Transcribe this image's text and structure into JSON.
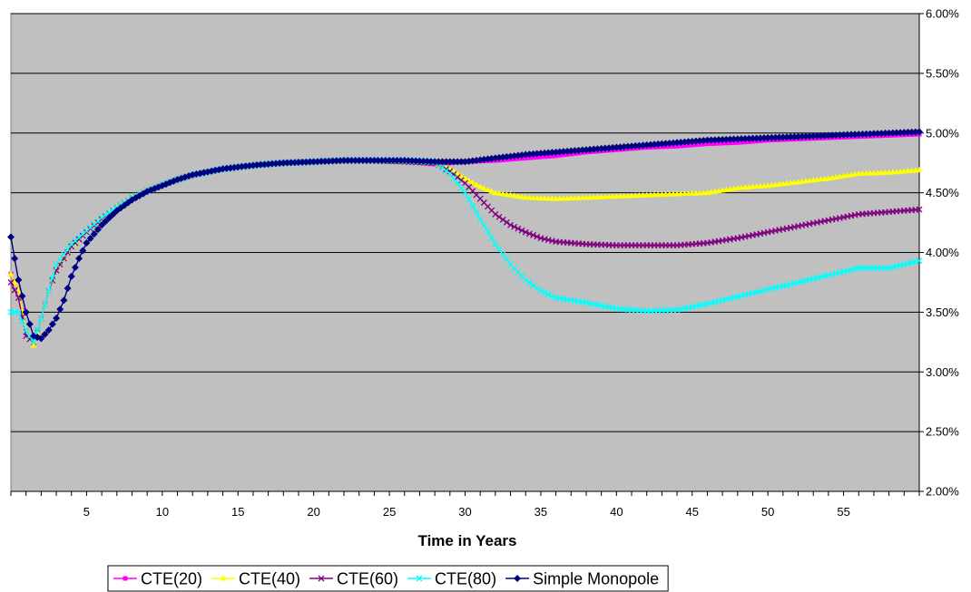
{
  "chart_data": {
    "type": "line",
    "title": "",
    "xlabel": "Time in Years",
    "ylabel": "",
    "xlim": [
      0,
      60
    ],
    "ylim": [
      0.02,
      0.06
    ],
    "x_ticks": [
      5,
      10,
      15,
      20,
      25,
      30,
      35,
      40,
      45,
      50,
      55
    ],
    "x_tick_labels": [
      "5",
      "10",
      "15",
      "20",
      "25",
      "30",
      "35",
      "40",
      "45",
      "50",
      "55"
    ],
    "y_ticks": [
      0.02,
      0.025,
      0.03,
      0.035,
      0.04,
      0.045,
      0.05,
      0.055,
      0.06
    ],
    "y_tick_labels": [
      "2.00%",
      "2.50%",
      "3.00%",
      "3.50%",
      "4.00%",
      "4.50%",
      "5.00%",
      "5.50%",
      "6.00%"
    ],
    "y_axis_side": "right",
    "grid": "horizontal",
    "plot_background": "#c0c0c0",
    "legend": "bottom",
    "series": [
      {
        "name": "CTE(20)",
        "color": "#ff00ff",
        "marker": "square",
        "points": [
          [
            0,
            0.0382
          ],
          [
            0.5,
            0.0368
          ],
          [
            1,
            0.0335
          ],
          [
            1.5,
            0.0322
          ],
          [
            2,
            0.0345
          ],
          [
            2.5,
            0.0368
          ],
          [
            3,
            0.0385
          ],
          [
            4,
            0.0405
          ],
          [
            5,
            0.0417
          ],
          [
            6,
            0.0428
          ],
          [
            7,
            0.0438
          ],
          [
            8,
            0.0446
          ],
          [
            9,
            0.0452
          ],
          [
            10,
            0.0457
          ],
          [
            12,
            0.0465
          ],
          [
            14,
            0.047
          ],
          [
            16,
            0.0473
          ],
          [
            18,
            0.0475
          ],
          [
            20,
            0.0476
          ],
          [
            22,
            0.0477
          ],
          [
            24,
            0.0477
          ],
          [
            26,
            0.0476
          ],
          [
            28,
            0.0474
          ],
          [
            30,
            0.0476
          ],
          [
            32,
            0.0477
          ],
          [
            34,
            0.0479
          ],
          [
            36,
            0.0481
          ],
          [
            38,
            0.0484
          ],
          [
            40,
            0.0486
          ],
          [
            42,
            0.0488
          ],
          [
            44,
            0.0489
          ],
          [
            46,
            0.0491
          ],
          [
            48,
            0.0492
          ],
          [
            50,
            0.0494
          ],
          [
            52,
            0.0495
          ],
          [
            54,
            0.0496
          ],
          [
            56,
            0.0497
          ],
          [
            58,
            0.0498
          ],
          [
            60,
            0.0499
          ]
        ]
      },
      {
        "name": "CTE(40)",
        "color": "#ffff00",
        "marker": "triangle",
        "points": [
          [
            0,
            0.0382
          ],
          [
            0.5,
            0.0368
          ],
          [
            1,
            0.0335
          ],
          [
            1.5,
            0.0322
          ],
          [
            2,
            0.0345
          ],
          [
            2.5,
            0.0368
          ],
          [
            3,
            0.0385
          ],
          [
            4,
            0.0405
          ],
          [
            5,
            0.0417
          ],
          [
            6,
            0.0428
          ],
          [
            7,
            0.0438
          ],
          [
            8,
            0.0446
          ],
          [
            9,
            0.0452
          ],
          [
            10,
            0.0457
          ],
          [
            12,
            0.0465
          ],
          [
            14,
            0.047
          ],
          [
            16,
            0.0473
          ],
          [
            18,
            0.0475
          ],
          [
            20,
            0.0476
          ],
          [
            22,
            0.0477
          ],
          [
            24,
            0.0477
          ],
          [
            26,
            0.0476
          ],
          [
            28,
            0.0475
          ],
          [
            29,
            0.047
          ],
          [
            30,
            0.0462
          ],
          [
            31,
            0.0455
          ],
          [
            32,
            0.045
          ],
          [
            34,
            0.0446
          ],
          [
            36,
            0.0445
          ],
          [
            38,
            0.0446
          ],
          [
            40,
            0.0447
          ],
          [
            42,
            0.0448
          ],
          [
            44,
            0.0449
          ],
          [
            46,
            0.045
          ],
          [
            48,
            0.0454
          ],
          [
            50,
            0.0456
          ],
          [
            52,
            0.0459
          ],
          [
            54,
            0.0462
          ],
          [
            56,
            0.0466
          ],
          [
            58,
            0.0467
          ],
          [
            60,
            0.0469
          ]
        ]
      },
      {
        "name": "CTE(60)",
        "color": "#800080",
        "marker": "x",
        "points": [
          [
            0,
            0.0375
          ],
          [
            0.5,
            0.0362
          ],
          [
            1,
            0.033
          ],
          [
            1.5,
            0.0325
          ],
          [
            2,
            0.0345
          ],
          [
            2.5,
            0.0368
          ],
          [
            3,
            0.0385
          ],
          [
            4,
            0.0405
          ],
          [
            5,
            0.0417
          ],
          [
            6,
            0.0428
          ],
          [
            7,
            0.0438
          ],
          [
            8,
            0.0446
          ],
          [
            9,
            0.0452
          ],
          [
            10,
            0.0457
          ],
          [
            12,
            0.0465
          ],
          [
            14,
            0.047
          ],
          [
            16,
            0.0473
          ],
          [
            18,
            0.0475
          ],
          [
            20,
            0.0476
          ],
          [
            22,
            0.0477
          ],
          [
            24,
            0.0477
          ],
          [
            26,
            0.0476
          ],
          [
            28,
            0.0475
          ],
          [
            29,
            0.0468
          ],
          [
            30,
            0.0458
          ],
          [
            31,
            0.0445
          ],
          [
            32,
            0.0432
          ],
          [
            33,
            0.0423
          ],
          [
            34,
            0.0417
          ],
          [
            35,
            0.0412
          ],
          [
            36,
            0.0409
          ],
          [
            38,
            0.0407
          ],
          [
            40,
            0.0406
          ],
          [
            42,
            0.0406
          ],
          [
            44,
            0.0406
          ],
          [
            46,
            0.0408
          ],
          [
            48,
            0.0412
          ],
          [
            50,
            0.0417
          ],
          [
            52,
            0.0422
          ],
          [
            54,
            0.0427
          ],
          [
            56,
            0.0432
          ],
          [
            58,
            0.0434
          ],
          [
            60,
            0.0436
          ]
        ]
      },
      {
        "name": "CTE(80)",
        "color": "#00ffff",
        "marker": "x",
        "points": [
          [
            0,
            0.035
          ],
          [
            0.5,
            0.035
          ],
          [
            1,
            0.0335
          ],
          [
            1.5,
            0.0325
          ],
          [
            2,
            0.0345
          ],
          [
            2.5,
            0.0368
          ],
          [
            3,
            0.039
          ],
          [
            4,
            0.0407
          ],
          [
            5,
            0.0418
          ],
          [
            6,
            0.0429
          ],
          [
            7,
            0.0438
          ],
          [
            8,
            0.0446
          ],
          [
            9,
            0.0452
          ],
          [
            10,
            0.0457
          ],
          [
            12,
            0.0465
          ],
          [
            14,
            0.047
          ],
          [
            16,
            0.0473
          ],
          [
            18,
            0.0475
          ],
          [
            20,
            0.0476
          ],
          [
            22,
            0.0477
          ],
          [
            24,
            0.0477
          ],
          [
            26,
            0.0477
          ],
          [
            28,
            0.0476
          ],
          [
            29,
            0.0466
          ],
          [
            30,
            0.045
          ],
          [
            31,
            0.0428
          ],
          [
            32,
            0.0407
          ],
          [
            33,
            0.039
          ],
          [
            34,
            0.0377
          ],
          [
            35,
            0.0368
          ],
          [
            36,
            0.0362
          ],
          [
            37,
            0.036
          ],
          [
            38,
            0.0358
          ],
          [
            40,
            0.0353
          ],
          [
            42,
            0.0351
          ],
          [
            44,
            0.0352
          ],
          [
            46,
            0.0357
          ],
          [
            48,
            0.0363
          ],
          [
            50,
            0.0369
          ],
          [
            52,
            0.0375
          ],
          [
            54,
            0.0381
          ],
          [
            56,
            0.0387
          ],
          [
            58,
            0.0387
          ],
          [
            60,
            0.0393
          ]
        ]
      },
      {
        "name": "Simple Monopole",
        "color": "#000080",
        "marker": "diamond",
        "points": [
          [
            0,
            0.0413
          ],
          [
            0.5,
            0.0377
          ],
          [
            1,
            0.035
          ],
          [
            1.5,
            0.033
          ],
          [
            2,
            0.0328
          ],
          [
            2.5,
            0.0335
          ],
          [
            3,
            0.0345
          ],
          [
            3.5,
            0.036
          ],
          [
            4,
            0.038
          ],
          [
            4.5,
            0.0395
          ],
          [
            5,
            0.0408
          ],
          [
            6,
            0.0423
          ],
          [
            7,
            0.0435
          ],
          [
            8,
            0.0444
          ],
          [
            9,
            0.0451
          ],
          [
            10,
            0.0456
          ],
          [
            11,
            0.0461
          ],
          [
            12,
            0.0465
          ],
          [
            14,
            0.047
          ],
          [
            16,
            0.0473
          ],
          [
            18,
            0.0475
          ],
          [
            20,
            0.0476
          ],
          [
            22,
            0.0477
          ],
          [
            24,
            0.0477
          ],
          [
            26,
            0.0477
          ],
          [
            28,
            0.0476
          ],
          [
            29,
            0.0476
          ],
          [
            30,
            0.0476
          ],
          [
            32,
            0.0479
          ],
          [
            34,
            0.0482
          ],
          [
            36,
            0.0484
          ],
          [
            38,
            0.0486
          ],
          [
            40,
            0.0488
          ],
          [
            42,
            0.049
          ],
          [
            44,
            0.0492
          ],
          [
            46,
            0.0494
          ],
          [
            48,
            0.0495
          ],
          [
            50,
            0.0496
          ],
          [
            52,
            0.0497
          ],
          [
            54,
            0.0498
          ],
          [
            56,
            0.0499
          ],
          [
            58,
            0.05
          ],
          [
            60,
            0.0501
          ]
        ]
      }
    ]
  }
}
